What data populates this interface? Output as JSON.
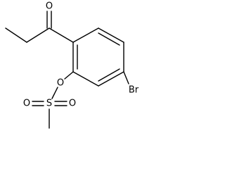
{
  "atoms": [
    "O",
    "Br",
    "O",
    "S",
    "O",
    "O"
  ]
}
